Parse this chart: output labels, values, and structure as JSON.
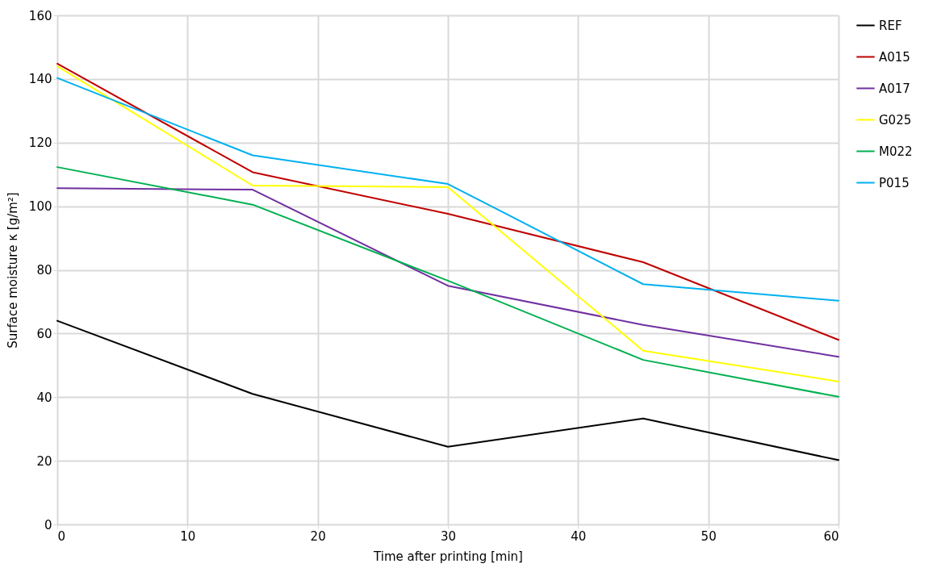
{
  "chart_data": {
    "type": "line",
    "xlabel": "Time after printing [min]",
    "ylabel": "Surface moisture κ [g/m²]",
    "x": [
      0,
      15,
      30,
      45,
      60
    ],
    "series": [
      {
        "name": "REF",
        "color": "#000000",
        "values": [
          64,
          41,
          24.4,
          33.3,
          20.2
        ]
      },
      {
        "name": "A015",
        "color": "#c00000",
        "values": [
          144.8,
          110.7,
          97.6,
          82.4,
          58
        ]
      },
      {
        "name": "A017",
        "color": "#7030a0",
        "values": [
          105.7,
          105.2,
          75,
          62.7,
          52.7
        ]
      },
      {
        "name": "G025",
        "color": "#ffff00",
        "values": [
          144,
          106.5,
          106,
          54.6,
          44.9
        ]
      },
      {
        "name": "M022",
        "color": "#00b050",
        "values": [
          112.3,
          100.5,
          76.6,
          51.7,
          40.1
        ]
      },
      {
        "name": "P015",
        "color": "#00b0f0",
        "values": [
          140.3,
          116,
          107,
          75.5,
          70.3
        ]
      }
    ],
    "xlim": [
      0,
      60
    ],
    "xticks": [
      0,
      10,
      20,
      30,
      40,
      50,
      60
    ],
    "ylim": [
      0,
      160
    ],
    "yticks": [
      0,
      20,
      40,
      60,
      80,
      100,
      120,
      140,
      160
    ],
    "grid": true,
    "legend": "right"
  }
}
